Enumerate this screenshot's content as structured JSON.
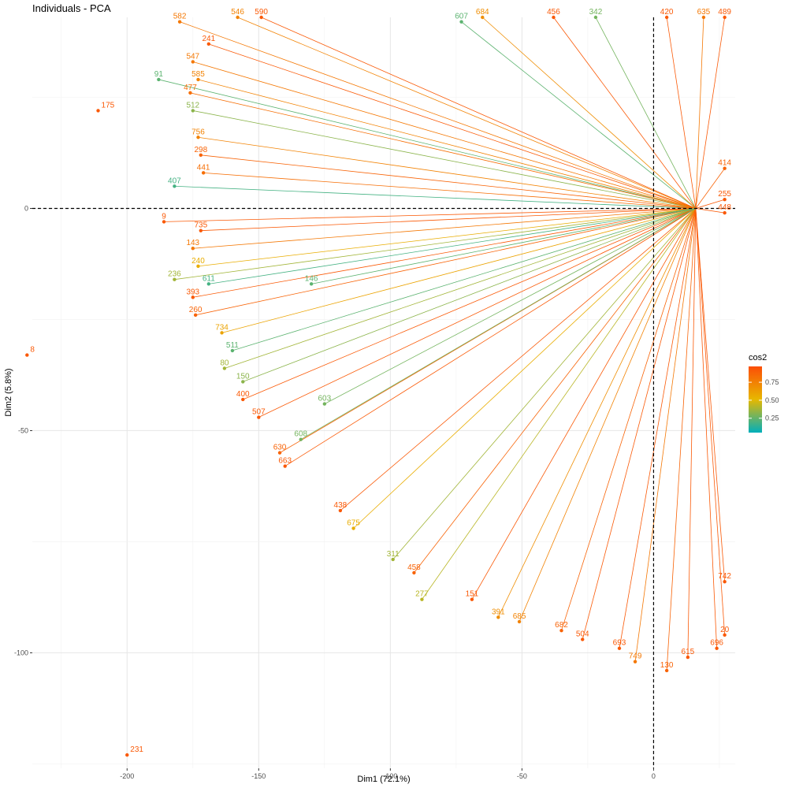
{
  "chart_data": {
    "type": "scatter",
    "title": "Individuals - PCA",
    "xlabel": "Dim1 (72.1%)",
    "ylabel": "Dim2 (5.8%)",
    "xlim": [
      -236,
      31
    ],
    "ylim": [
      -126,
      43
    ],
    "x_ticks": [
      -200,
      -150,
      -100,
      -50,
      0
    ],
    "y_ticks": [
      0,
      -50,
      -100
    ],
    "x_tick_labels": [
      "-200",
      "-150",
      "-100",
      "-50",
      "0"
    ],
    "y_tick_labels": [
      "0",
      "-50",
      "-100"
    ],
    "grid": true,
    "origin": [
      16,
      0
    ],
    "reference_lines": {
      "x": 0,
      "y": 0,
      "style": "dashed"
    },
    "legend": {
      "title": "cos2",
      "placement": "right",
      "ticks": [
        0.25,
        0.5,
        0.75
      ],
      "tick_labels": [
        "0.25",
        "0.50",
        "0.75"
      ],
      "colors": [
        "#00AFBB",
        "#E7B800",
        "#FC4E07"
      ]
    },
    "points": [
      {
        "label": "175",
        "x": -211,
        "y": 22,
        "cos2": 0.95
      },
      {
        "label": "8",
        "x": -238,
        "y": -33,
        "cos2": 0.95
      },
      {
        "label": "231",
        "x": -200,
        "y": -123,
        "cos2": 0.95
      },
      {
        "label": "241",
        "x": -169,
        "y": 37,
        "cos2": 0.95
      },
      {
        "label": "91",
        "x": -188,
        "y": 29,
        "cos2": 0.2
      },
      {
        "label": "512",
        "x": -175,
        "y": 22,
        "cos2": 0.3
      },
      {
        "label": "407",
        "x": -182,
        "y": 5,
        "cos2": 0.15
      },
      {
        "label": "236",
        "x": -182,
        "y": -16,
        "cos2": 0.35
      },
      {
        "label": "9",
        "x": -186,
        "y": -3,
        "cos2": 0.95
      },
      {
        "label": "582",
        "x": -180,
        "y": 42,
        "cos2": 0.8
      },
      {
        "label": "546",
        "x": -158,
        "y": 43,
        "cos2": 0.75
      },
      {
        "label": "590",
        "x": -149,
        "y": 43,
        "cos2": 0.95
      },
      {
        "label": "547",
        "x": -175,
        "y": 33,
        "cos2": 0.8
      },
      {
        "label": "585",
        "x": -173,
        "y": 29,
        "cos2": 0.75
      },
      {
        "label": "477",
        "x": -176,
        "y": 26,
        "cos2": 0.85
      },
      {
        "label": "756",
        "x": -173,
        "y": 16,
        "cos2": 0.75
      },
      {
        "label": "298",
        "x": -172,
        "y": 12,
        "cos2": 0.9
      },
      {
        "label": "441",
        "x": -171,
        "y": 8,
        "cos2": 0.85
      },
      {
        "label": "735",
        "x": -172,
        "y": -5,
        "cos2": 0.95
      },
      {
        "label": "143",
        "x": -175,
        "y": -9,
        "cos2": 0.8
      },
      {
        "label": "240",
        "x": -173,
        "y": -13,
        "cos2": 0.55
      },
      {
        "label": "393",
        "x": -175,
        "y": -20,
        "cos2": 0.95
      },
      {
        "label": "260",
        "x": -174,
        "y": -24,
        "cos2": 0.9
      },
      {
        "label": "734",
        "x": -164,
        "y": -28,
        "cos2": 0.6
      },
      {
        "label": "511",
        "x": -160,
        "y": -32,
        "cos2": 0.2
      },
      {
        "label": "80",
        "x": -163,
        "y": -36,
        "cos2": 0.35
      },
      {
        "label": "150",
        "x": -156,
        "y": -39,
        "cos2": 0.3
      },
      {
        "label": "400",
        "x": -156,
        "y": -43,
        "cos2": 0.95
      },
      {
        "label": "507",
        "x": -150,
        "y": -47,
        "cos2": 0.95
      },
      {
        "label": "630",
        "x": -142,
        "y": -55,
        "cos2": 0.9
      },
      {
        "label": "663",
        "x": -140,
        "y": -58,
        "cos2": 0.95
      },
      {
        "label": "438",
        "x": -119,
        "y": -68,
        "cos2": 0.95
      },
      {
        "label": "675",
        "x": -114,
        "y": -72,
        "cos2": 0.55
      },
      {
        "label": "311",
        "x": -99,
        "y": -79,
        "cos2": 0.35
      },
      {
        "label": "458",
        "x": -91,
        "y": -82,
        "cos2": 0.9
      },
      {
        "label": "277",
        "x": -88,
        "y": -88,
        "cos2": 0.4
      },
      {
        "label": "151",
        "x": -69,
        "y": -88,
        "cos2": 0.95
      },
      {
        "label": "391",
        "x": -59,
        "y": -92,
        "cos2": 0.7
      },
      {
        "label": "685",
        "x": -51,
        "y": -93,
        "cos2": 0.75
      },
      {
        "label": "682",
        "x": -35,
        "y": -95,
        "cos2": 0.9
      },
      {
        "label": "504",
        "x": -27,
        "y": -97,
        "cos2": 0.95
      },
      {
        "label": "693",
        "x": -13,
        "y": -99,
        "cos2": 0.95
      },
      {
        "label": "749",
        "x": -7,
        "y": -102,
        "cos2": 0.8
      },
      {
        "label": "130",
        "x": 5,
        "y": -104,
        "cos2": 0.9
      },
      {
        "label": "615",
        "x": 13,
        "y": -101,
        "cos2": 0.95
      },
      {
        "label": "696",
        "x": 24,
        "y": -99,
        "cos2": 0.95
      },
      {
        "label": "20",
        "x": 27,
        "y": -96,
        "cos2": 0.95
      },
      {
        "label": "607",
        "x": -73,
        "y": 42,
        "cos2": 0.2
      },
      {
        "label": "684",
        "x": -65,
        "y": 43,
        "cos2": 0.7
      },
      {
        "label": "456",
        "x": -38,
        "y": 43,
        "cos2": 0.95
      },
      {
        "label": "342",
        "x": -22,
        "y": 43,
        "cos2": 0.25
      },
      {
        "label": "420",
        "x": 5,
        "y": 43,
        "cos2": 0.95
      },
      {
        "label": "635",
        "x": 19,
        "y": 43,
        "cos2": 0.8
      },
      {
        "label": "489",
        "x": 27,
        "y": 43,
        "cos2": 0.95
      },
      {
        "label": "414",
        "x": 27,
        "y": 9,
        "cos2": 0.9
      },
      {
        "label": "255",
        "x": 27,
        "y": 2,
        "cos2": 0.95
      },
      {
        "label": "448",
        "x": 27,
        "y": -1,
        "cos2": 0.95
      },
      {
        "label": "742",
        "x": 27,
        "y": -84,
        "cos2": 0.95
      },
      {
        "label": "603",
        "x": -125,
        "y": -44,
        "cos2": 0.25
      },
      {
        "label": "146",
        "x": -130,
        "y": -17,
        "cos2": 0.2
      },
      {
        "label": "608",
        "x": -134,
        "y": -52,
        "cos2": 0.25
      },
      {
        "label": "611",
        "x": -169,
        "y": -17,
        "cos2": 0.15
      }
    ]
  }
}
